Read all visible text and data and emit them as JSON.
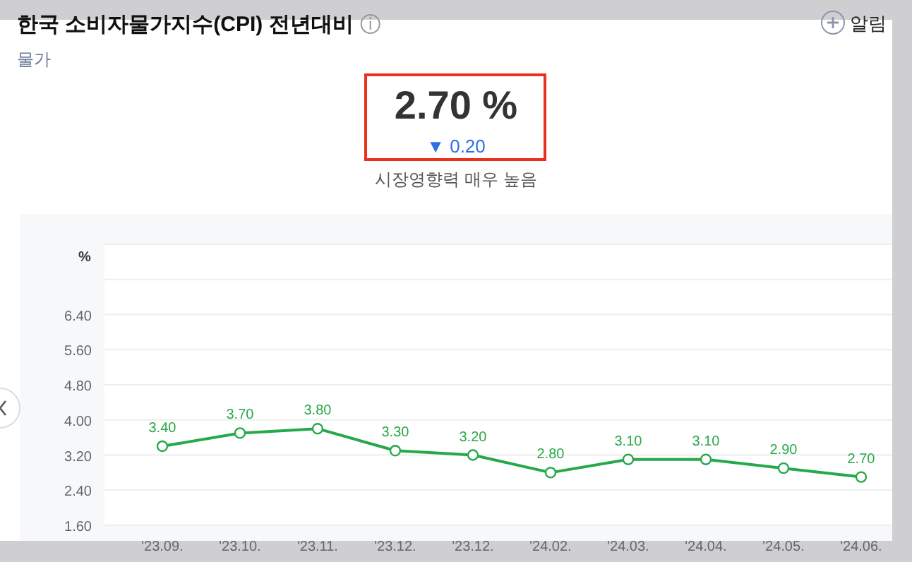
{
  "chart_data": {
    "type": "line",
    "title": "한국 소비자물가지수(CPI) 전년대비",
    "subtitle": "물가",
    "ylabel": "%",
    "annotations": [
      "2.70 %",
      "▼ 0.20",
      "시장영향력 매우 높음",
      "알림"
    ],
    "categories": [
      "'23.09.",
      "'23.10.",
      "'23.11.",
      "'23.12.",
      "'23.12.",
      "'24.02.",
      "'24.03.",
      "'24.04.",
      "'24.05.",
      "'24.06."
    ],
    "series": [
      {
        "color": "#27a84a",
        "values": [
          3.4,
          3.7,
          3.8,
          3.3,
          3.2,
          2.8,
          3.1,
          3.1,
          2.9,
          2.7
        ],
        "value_labels": [
          "3.40",
          "3.70",
          "3.80",
          "3.30",
          "3.20",
          "2.80",
          "3.10",
          "3.10",
          "2.90",
          "2.70"
        ]
      }
    ],
    "ylim": [
      1.6,
      8.0
    ],
    "yticks": [
      {
        "value": 1.6,
        "label": "1.60"
      },
      {
        "value": 2.4,
        "label": "2.40"
      },
      {
        "value": 3.2,
        "label": "3.20"
      },
      {
        "value": 4.0,
        "label": "4.00"
      },
      {
        "value": 4.8,
        "label": "4.80"
      },
      {
        "value": 5.6,
        "label": "5.60"
      },
      {
        "value": 6.4,
        "label": "6.40"
      },
      {
        "value": 7.2,
        "label": null
      }
    ],
    "marker": "circle",
    "grid": "y"
  }
}
